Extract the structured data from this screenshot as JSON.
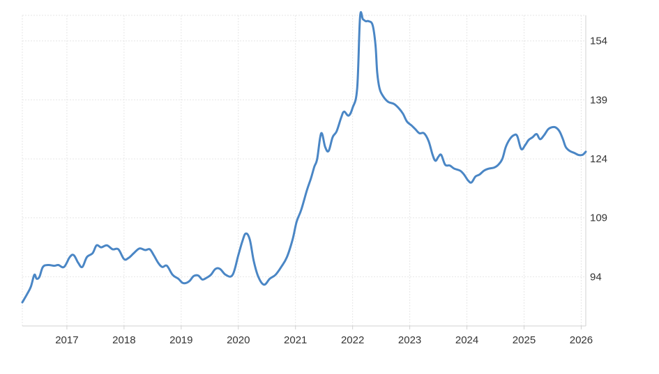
{
  "chart_data": {
    "type": "line",
    "title": "",
    "xlabel": "",
    "ylabel": "",
    "xlim": [
      2016.22,
      2026.08
    ],
    "ylim": [
      81.5,
      160.5
    ],
    "yticks": [
      94,
      109,
      124,
      139,
      154
    ],
    "xticks": [
      2017,
      2018,
      2019,
      2020,
      2021,
      2022,
      2023,
      2024,
      2025,
      2026
    ],
    "ytick_labels": [
      "94",
      "109",
      "124",
      "139",
      "154"
    ],
    "xtick_labels": [
      "2017",
      "2018",
      "2019",
      "2020",
      "2021",
      "2022",
      "2023",
      "2024",
      "2025",
      "2026"
    ],
    "y_axis_side": "right",
    "grid": true,
    "legend": "none",
    "line_color": "#4a86c5",
    "series": [
      {
        "x": [
          2016.22,
          2016.3,
          2016.37,
          2016.43,
          2016.47,
          2016.52,
          2016.58,
          2016.67,
          2016.78,
          2016.85,
          2016.95,
          2017.05,
          2017.12,
          2017.2,
          2017.27,
          2017.35,
          2017.45,
          2017.52,
          2017.6,
          2017.7,
          2017.8,
          2017.9,
          2018.0,
          2018.08,
          2018.17,
          2018.27,
          2018.37,
          2018.45,
          2018.52,
          2018.6,
          2018.67,
          2018.75,
          2018.85,
          2018.95,
          2019.02,
          2019.08,
          2019.15,
          2019.22,
          2019.3,
          2019.37,
          2019.45,
          2019.52,
          2019.6,
          2019.68,
          2019.78,
          2019.9,
          2020.0,
          2020.07,
          2020.13,
          2020.2,
          2020.27,
          2020.35,
          2020.45,
          2020.55,
          2020.65,
          2020.75,
          2020.85,
          2020.95,
          2021.02,
          2021.1,
          2021.2,
          2021.27,
          2021.33,
          2021.38,
          2021.45,
          2021.52,
          2021.58,
          2021.65,
          2021.72,
          2021.8,
          2021.85,
          2021.93,
          2022.0,
          2022.08,
          2022.13,
          2022.18,
          2022.23,
          2022.28,
          2022.35,
          2022.4,
          2022.43,
          2022.47,
          2022.53,
          2022.62,
          2022.72,
          2022.8,
          2022.88,
          2022.95,
          2023.03,
          2023.1,
          2023.17,
          2023.25,
          2023.33,
          2023.4,
          2023.45,
          2023.5,
          2023.55,
          2023.62,
          2023.7,
          2023.78,
          2023.88,
          2023.95,
          2024.02,
          2024.08,
          2024.15,
          2024.22,
          2024.3,
          2024.38,
          2024.48,
          2024.55,
          2024.62,
          2024.68,
          2024.75,
          2024.82,
          2024.88,
          2024.95,
          2025.02,
          2025.08,
          2025.15,
          2025.22,
          2025.28,
          2025.35,
          2025.42,
          2025.48,
          2025.55,
          2025.62,
          2025.68,
          2025.73,
          2025.8,
          2025.88,
          2025.95,
          2026.02,
          2026.08
        ],
        "y": [
          87.5,
          89.5,
          91.5,
          94.5,
          93.5,
          94.0,
          96.5,
          97.0,
          96.8,
          97.0,
          96.5,
          99.0,
          99.5,
          97.5,
          96.5,
          99.0,
          100.0,
          102.0,
          101.5,
          102.0,
          101.0,
          101.0,
          98.5,
          98.8,
          100.0,
          101.2,
          100.8,
          101.0,
          99.5,
          97.5,
          96.5,
          96.8,
          94.5,
          93.5,
          92.5,
          92.4,
          93.0,
          94.2,
          94.3,
          93.3,
          93.8,
          94.5,
          96.0,
          96.0,
          94.5,
          94.5,
          99.5,
          103.0,
          105.0,
          103.5,
          98.0,
          94.0,
          92.0,
          93.5,
          94.5,
          96.5,
          99.0,
          103.5,
          108.0,
          111.0,
          116.0,
          119.0,
          122.0,
          124.0,
          130.5,
          127.0,
          126.0,
          129.5,
          131.0,
          134.5,
          136.0,
          135.0,
          137.0,
          142.0,
          160.0,
          159.5,
          159.0,
          159.0,
          158.0,
          153.0,
          146.0,
          142.0,
          140.0,
          138.5,
          138.0,
          137.0,
          135.5,
          133.5,
          132.5,
          131.5,
          130.5,
          130.5,
          128.5,
          125.0,
          123.5,
          124.5,
          125.0,
          122.5,
          122.3,
          121.5,
          121.0,
          120.0,
          118.5,
          118.0,
          119.5,
          120.0,
          121.0,
          121.5,
          121.8,
          122.5,
          124.0,
          127.0,
          129.0,
          130.0,
          129.8,
          126.5,
          127.5,
          128.8,
          129.5,
          130.3,
          129.0,
          130.0,
          131.5,
          132.0,
          132.0,
          131.0,
          129.0,
          127.0,
          126.0,
          125.5,
          125.0,
          125.0,
          125.8
        ]
      }
    ]
  }
}
